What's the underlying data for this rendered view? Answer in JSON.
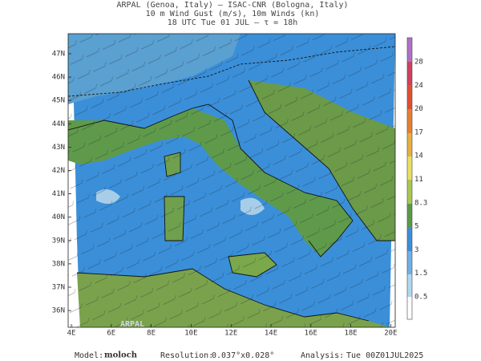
{
  "header": {
    "lines": [
      "ARPAL (Genoa, Italy)  –  ISAC-CNR (Bologna, Italy)",
      "10 m Wind Gust (m/s), 10m Winds (kn)",
      "18 UTC Tue 01 JUL  –  τ = 18h"
    ]
  },
  "map": {
    "lat_labels": [
      "47N",
      "46N",
      "45N",
      "44N",
      "43N",
      "42N",
      "41N",
      "40N",
      "39N",
      "38N",
      "37N",
      "36N"
    ],
    "lon_labels": [
      "4E",
      "6E",
      "8E",
      "10E",
      "12E",
      "14E",
      "16E",
      "18E",
      "20E"
    ],
    "watermark": "ARPAL"
  },
  "colorbar": {
    "labels": [
      "28",
      "24",
      "20",
      "17",
      "14",
      "11",
      "8.3",
      "5",
      "3",
      "1.5",
      "0.5"
    ]
  },
  "footer": {
    "model_label": "Model:",
    "model": "moloch",
    "resolution_label": "Resolution:",
    "resolution": "0.037°x0.028°",
    "analysis_label": "Analysis:",
    "analysis": "Tue 00Z01JUL2025"
  }
}
